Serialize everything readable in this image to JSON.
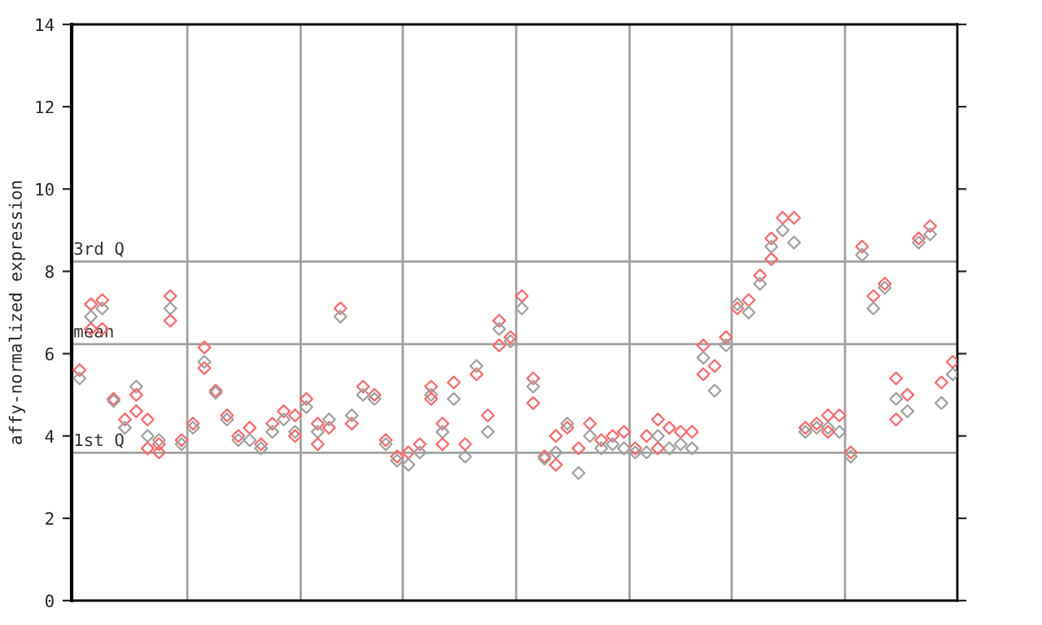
{
  "chart_data": {
    "type": "scatter",
    "ylabel": "affy-normalized expression",
    "categories": [
      null,
      null,
      null,
      null,
      null,
      null,
      null,
      null,
      null,
      null,
      null,
      null,
      null,
      null,
      null,
      null,
      null,
      null,
      null,
      null,
      null,
      null,
      null,
      null,
      null,
      null,
      null,
      null,
      null,
      null,
      null,
      null,
      null,
      null,
      null,
      null,
      null,
      null,
      null,
      null,
      null,
      null,
      null,
      null,
      null,
      null,
      null,
      null,
      null,
      null,
      null,
      null,
      null,
      null,
      null,
      null,
      null,
      null,
      null,
      null,
      null,
      null,
      null,
      null,
      null,
      null,
      null,
      null,
      null,
      null,
      null,
      null,
      null,
      null,
      null,
      null,
      null,
      null
    ],
    "ylim": [
      0,
      14
    ],
    "yticks": [
      0,
      2,
      4,
      6,
      8,
      10,
      12,
      14
    ],
    "marker": "diamond",
    "series": [
      {
        "color": "#ff6666",
        "values": [
          5.6,
          7.2,
          7.3,
          4.9,
          4.4,
          4.6,
          4.4,
          3.8,
          7.4,
          3.9,
          4.3,
          6.15,
          5.1,
          4.5,
          4.0,
          4.2,
          3.8,
          4.3,
          4.6,
          4.5,
          4.9,
          4.3,
          4.2,
          7.1,
          4.3,
          5.2,
          5.0,
          3.9,
          3.5,
          3.6,
          3.8,
          5.2,
          4.3,
          5.3,
          3.8,
          5.5,
          4.5,
          6.8,
          6.4,
          7.4,
          5.4,
          3.5,
          4.0,
          4.2,
          3.7,
          4.3,
          3.9,
          4.0,
          4.1,
          3.7,
          4.0,
          4.4,
          4.2,
          4.1,
          4.1,
          6.2,
          5.7,
          6.4,
          7.1,
          7.3,
          7.9,
          8.8,
          9.3,
          9.3,
          4.2,
          4.3,
          4.5,
          4.5,
          3.6,
          8.6,
          7.4,
          7.7,
          5.4,
          5.0,
          8.8,
          9.1,
          5.3,
          5.8
        ]
      },
      {
        "color": "#a0a0a0",
        "values": [
          5.4,
          6.9,
          7.1,
          4.85,
          4.2,
          5.2,
          4.0,
          3.9,
          7.1,
          3.8,
          4.2,
          5.8,
          5.05,
          4.4,
          3.9,
          3.9,
          3.7,
          4.1,
          4.4,
          4.1,
          4.7,
          4.1,
          4.4,
          6.9,
          4.5,
          5.0,
          4.9,
          3.8,
          3.4,
          3.3,
          3.6,
          5.0,
          4.1,
          4.9,
          3.5,
          5.7,
          4.1,
          6.6,
          6.3,
          7.1,
          5.2,
          3.45,
          3.6,
          4.3,
          3.1,
          4.0,
          3.7,
          3.8,
          3.7,
          3.6,
          3.6,
          4.0,
          3.7,
          3.8,
          3.7,
          5.9,
          5.1,
          6.2,
          7.2,
          7.0,
          7.7,
          8.6,
          9.0,
          8.7,
          4.1,
          4.2,
          4.2,
          4.1,
          3.5,
          8.4,
          7.1,
          7.6,
          4.9,
          4.6,
          8.7,
          8.9,
          4.8,
          5.5
        ]
      },
      {
        "color": "#ff6666",
        "values": [
          null,
          6.6,
          6.6,
          null,
          null,
          5.0,
          3.7,
          3.6,
          6.8,
          null,
          null,
          5.65,
          null,
          null,
          null,
          null,
          null,
          null,
          null,
          4.0,
          null,
          3.8,
          null,
          null,
          null,
          null,
          null,
          null,
          null,
          null,
          null,
          4.9,
          3.8,
          null,
          null,
          null,
          null,
          6.2,
          null,
          null,
          4.8,
          null,
          3.3,
          null,
          null,
          null,
          null,
          null,
          null,
          null,
          null,
          3.7,
          null,
          null,
          null,
          5.5,
          null,
          null,
          null,
          null,
          null,
          8.3,
          null,
          null,
          null,
          null,
          4.1,
          null,
          null,
          null,
          null,
          null,
          4.4,
          null,
          null,
          null,
          null,
          null
        ]
      }
    ],
    "ref_lines": [
      {
        "axis": "y",
        "value": 8.24,
        "label": "3rd Q",
        "color": "#a0a0a0"
      },
      {
        "axis": "y",
        "value": 6.23,
        "label": "mean",
        "color": "#a0a0a0"
      },
      {
        "axis": "y",
        "value": 3.59,
        "label": "1st Q",
        "color": "#a0a0a0"
      }
    ]
  }
}
